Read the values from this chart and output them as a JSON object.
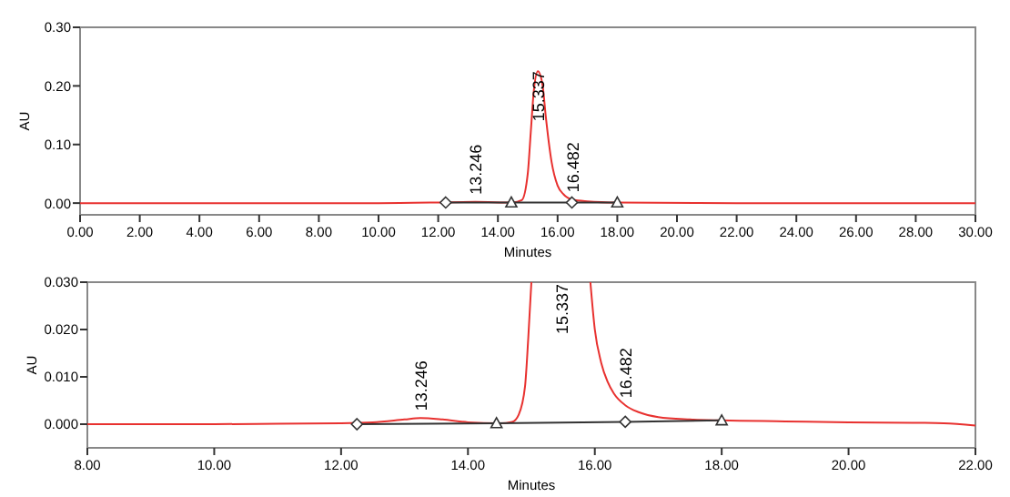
{
  "chart_data": [
    {
      "type": "line",
      "xlabel": "Minutes",
      "ylabel": "AU",
      "xlim": [
        0,
        30
      ],
      "ylim": [
        -0.02,
        0.3
      ],
      "xticks": [
        {
          "value": 0,
          "label": "0.00"
        },
        {
          "value": 2,
          "label": "2.00"
        },
        {
          "value": 4,
          "label": "4.00"
        },
        {
          "value": 6,
          "label": "6.00"
        },
        {
          "value": 8,
          "label": "8.00"
        },
        {
          "value": 10,
          "label": "10.00"
        },
        {
          "value": 12,
          "label": "12.00"
        },
        {
          "value": 14,
          "label": "14.00"
        },
        {
          "value": 16,
          "label": "16.00"
        },
        {
          "value": 18,
          "label": "18.00"
        },
        {
          "value": 20,
          "label": "20.00"
        },
        {
          "value": 22,
          "label": "22.00"
        },
        {
          "value": 24,
          "label": "24.00"
        },
        {
          "value": 26,
          "label": "26.00"
        },
        {
          "value": 28,
          "label": "28.00"
        },
        {
          "value": 30,
          "label": "30.00"
        }
      ],
      "yticks": [
        {
          "value": 0,
          "label": "0.00"
        },
        {
          "value": 0.1,
          "label": "0.10"
        },
        {
          "value": 0.2,
          "label": "0.20"
        },
        {
          "value": 0.3,
          "label": "0.30"
        }
      ],
      "grid": false,
      "series": [
        {
          "type": "line",
          "color": "#e8312f",
          "x": [
            0,
            5,
            10,
            12,
            13.25,
            14.5,
            14.8,
            15.0,
            15.1,
            15.2,
            15.34,
            15.5,
            15.6,
            15.8,
            16.0,
            16.2,
            16.5,
            17,
            18,
            22,
            30
          ],
          "values": [
            0,
            0,
            0,
            0.001,
            0.002,
            0.001,
            0.005,
            0.05,
            0.12,
            0.19,
            0.225,
            0.2,
            0.15,
            0.07,
            0.03,
            0.015,
            0.006,
            0.003,
            0.001,
            0,
            0
          ]
        },
        {
          "type": "line",
          "color": "#333333",
          "x": [
            12.25,
            14.45,
            16.48,
            18.0
          ],
          "values": [
            0.001,
            0.001,
            0.001,
            0.001
          ]
        },
        {
          "type": "scatter",
          "marker": "diamond",
          "color": "#333333",
          "x": [
            12.25,
            16.48
          ],
          "values": [
            0.001,
            0.001
          ]
        },
        {
          "type": "scatter",
          "marker": "triangle",
          "color": "#333333",
          "x": [
            14.45,
            18.0
          ],
          "values": [
            0.001,
            0.001
          ]
        }
      ],
      "annotations": [
        {
          "text": "13.246",
          "x": 13.246,
          "y": 0.002
        },
        {
          "text": "15.337",
          "x": 15.337,
          "y": 0.225
        },
        {
          "text": "16.482",
          "x": 16.482,
          "y": 0.006
        }
      ]
    },
    {
      "type": "line",
      "xlabel": "Minutes",
      "ylabel": "AU",
      "xlim": [
        8,
        22
      ],
      "ylim": [
        -0.005,
        0.03
      ],
      "xticks": [
        {
          "value": 8,
          "label": "8.00"
        },
        {
          "value": 10,
          "label": "10.00"
        },
        {
          "value": 12,
          "label": "12.00"
        },
        {
          "value": 14,
          "label": "14.00"
        },
        {
          "value": 16,
          "label": "16.00"
        },
        {
          "value": 18,
          "label": "18.00"
        },
        {
          "value": 20,
          "label": "20.00"
        },
        {
          "value": 22,
          "label": "22.00"
        }
      ],
      "yticks": [
        {
          "value": 0,
          "label": "0.000"
        },
        {
          "value": 0.01,
          "label": "0.010"
        },
        {
          "value": 0.02,
          "label": "0.020"
        },
        {
          "value": 0.03,
          "label": "0.030"
        }
      ],
      "grid": false,
      "series": [
        {
          "type": "line",
          "color": "#e8312f",
          "x": [
            8,
            10,
            11,
            12,
            12.5,
            13,
            13.25,
            13.6,
            14,
            14.5,
            14.7,
            14.8,
            14.9,
            14.95,
            15.0,
            null,
            15.93,
            16.0,
            16.1,
            16.2,
            16.3,
            16.48,
            16.7,
            17,
            17.5,
            18,
            19,
            20,
            21,
            21.5,
            22
          ],
          "values": [
            0,
            0,
            0.0001,
            0.0002,
            0.0004,
            0.001,
            0.0013,
            0.001,
            0.0004,
            0.0002,
            0.0005,
            0.002,
            0.008,
            0.018,
            0.03,
            null,
            0.03,
            0.02,
            0.013,
            0.009,
            0.0065,
            0.004,
            0.0025,
            0.0015,
            0.001,
            0.0008,
            0.0006,
            0.0004,
            0.0003,
            0.0002,
            -0.0003
          ]
        },
        {
          "type": "line",
          "color": "#333333",
          "x": [
            12.25,
            14.45,
            16.48,
            18.0
          ],
          "values": [
            0,
            0.0002,
            0.0005,
            0.0008
          ]
        },
        {
          "type": "scatter",
          "marker": "diamond",
          "color": "#333333",
          "x": [
            12.25,
            16.48
          ],
          "values": [
            0,
            0.0005
          ]
        },
        {
          "type": "scatter",
          "marker": "triangle",
          "color": "#333333",
          "x": [
            14.45,
            18.0
          ],
          "values": [
            0.0002,
            0.0008
          ]
        }
      ],
      "annotations": [
        {
          "text": "13.246",
          "x": 13.246,
          "y": 0.0013
        },
        "15.337",
        {
          "text": "16.482",
          "x": 16.482,
          "y": 0.004
        }
      ]
    }
  ]
}
